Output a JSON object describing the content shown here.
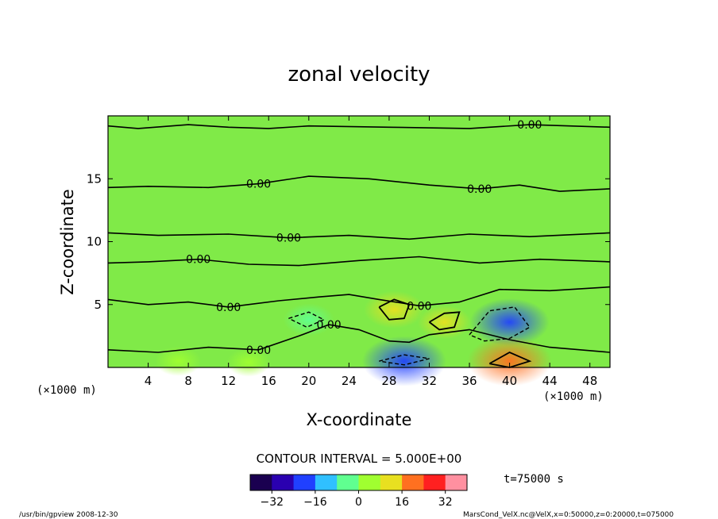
{
  "chart_data": {
    "type": "heatmap",
    "title": "zonal velocity",
    "xlabel": "X-coordinate",
    "ylabel": "Z-coordinate",
    "x_unit": "(×1000 m)",
    "xlim": [
      0,
      50
    ],
    "ylim": [
      0,
      20
    ],
    "x_ticks": [
      4,
      8,
      12,
      16,
      20,
      24,
      28,
      32,
      36,
      40,
      44,
      48
    ],
    "y_ticks": [
      5,
      10,
      15
    ],
    "contour_interval_text": "CONTOUR INTERVAL = 5.000E+00",
    "contour_labels": [
      "0.00",
      "0.00",
      "0.00",
      "0.00",
      "0.00",
      "0.00",
      "0.00",
      "0.00",
      "0.00",
      "0.00",
      "0.00",
      "0.00"
    ],
    "zero_contours": [
      [
        [
          0,
          19.2
        ],
        [
          3,
          19.0
        ],
        [
          8,
          19.3
        ],
        [
          12,
          19.1
        ],
        [
          16,
          19.0
        ],
        [
          20,
          19.2
        ],
        [
          28,
          19.1
        ],
        [
          36,
          19.0
        ],
        [
          42,
          19.3
        ],
        [
          50,
          19.1
        ]
      ],
      [
        [
          0,
          14.3
        ],
        [
          4,
          14.4
        ],
        [
          10,
          14.3
        ],
        [
          15,
          14.6
        ],
        [
          20,
          15.2
        ],
        [
          26,
          15.0
        ],
        [
          32,
          14.5
        ],
        [
          37,
          14.2
        ],
        [
          41,
          14.5
        ],
        [
          45,
          14.0
        ],
        [
          50,
          14.2
        ]
      ],
      [
        [
          0,
          10.7
        ],
        [
          5,
          10.5
        ],
        [
          12,
          10.6
        ],
        [
          18,
          10.3
        ],
        [
          24,
          10.5
        ],
        [
          30,
          10.2
        ],
        [
          36,
          10.6
        ],
        [
          42,
          10.4
        ],
        [
          50,
          10.7
        ]
      ],
      [
        [
          0,
          8.3
        ],
        [
          4,
          8.4
        ],
        [
          9,
          8.6
        ],
        [
          14,
          8.2
        ],
        [
          19,
          8.1
        ],
        [
          25,
          8.5
        ],
        [
          31,
          8.8
        ],
        [
          37,
          8.3
        ],
        [
          43,
          8.6
        ],
        [
          50,
          8.4
        ]
      ],
      [
        [
          0,
          5.4
        ],
        [
          4,
          5.0
        ],
        [
          8,
          5.2
        ],
        [
          12,
          4.8
        ],
        [
          17,
          5.3
        ],
        [
          21,
          5.6
        ],
        [
          24,
          5.8
        ],
        [
          27,
          5.4
        ],
        [
          31,
          4.9
        ],
        [
          35,
          5.2
        ],
        [
          39,
          6.2
        ],
        [
          44,
          6.1
        ],
        [
          50,
          6.4
        ]
      ],
      [
        [
          0,
          1.4
        ],
        [
          5,
          1.2
        ],
        [
          10,
          1.6
        ],
        [
          15,
          1.4
        ],
        [
          19,
          2.5
        ],
        [
          22,
          3.4
        ],
        [
          25,
          3.0
        ],
        [
          28,
          2.1
        ],
        [
          30,
          2.0
        ],
        [
          32,
          2.6
        ],
        [
          36,
          3.0
        ],
        [
          40,
          2.2
        ],
        [
          44,
          1.6
        ],
        [
          50,
          1.2
        ]
      ]
    ],
    "positive_contours": [
      [
        [
          27,
          4.8
        ],
        [
          28.5,
          5.4
        ],
        [
          30,
          5.0
        ],
        [
          29.5,
          3.9
        ],
        [
          28,
          3.8
        ],
        [
          27,
          4.8
        ]
      ],
      [
        [
          32,
          3.6
        ],
        [
          33.5,
          4.3
        ],
        [
          35,
          4.4
        ],
        [
          34.5,
          3.2
        ],
        [
          33,
          3.0
        ],
        [
          32,
          3.6
        ]
      ],
      [
        [
          38,
          0.3
        ],
        [
          40,
          1.2
        ],
        [
          42,
          0.5
        ],
        [
          40,
          0.0
        ],
        [
          38,
          0.3
        ]
      ]
    ],
    "negative_contours": [
      [
        [
          36,
          2.6
        ],
        [
          38,
          4.5
        ],
        [
          40.5,
          4.8
        ],
        [
          42,
          3.2
        ],
        [
          40,
          2.3
        ],
        [
          37.5,
          2.1
        ],
        [
          36,
          2.6
        ]
      ],
      [
        [
          27,
          0.5
        ],
        [
          29.5,
          1.0
        ],
        [
          32,
          0.7
        ],
        [
          29.5,
          0.2
        ],
        [
          27,
          0.5
        ]
      ],
      [
        [
          18,
          3.9
        ],
        [
          20,
          4.4
        ],
        [
          21.5,
          3.8
        ],
        [
          19.8,
          3.2
        ],
        [
          18,
          3.9
        ]
      ]
    ],
    "field_anomalies": [
      {
        "x": 40,
        "y": 3.6,
        "value": -20
      },
      {
        "x": 29.5,
        "y": 0.5,
        "value": -22
      },
      {
        "x": 20,
        "y": 3.8,
        "value": -8
      },
      {
        "x": 28.5,
        "y": 4.6,
        "value": 12
      },
      {
        "x": 33.5,
        "y": 3.6,
        "value": 9
      },
      {
        "x": 40,
        "y": 0.5,
        "value": 22
      },
      {
        "x": 7,
        "y": 0.5,
        "value": 6
      },
      {
        "x": 14,
        "y": 0.4,
        "value": 5
      }
    ],
    "colorbar": {
      "min": -40,
      "max": 40,
      "ticks": [
        -32,
        -16,
        0,
        16,
        32
      ],
      "colors": [
        "#1a0050",
        "#2a00b0",
        "#2040ff",
        "#30c0ff",
        "#60ff90",
        "#a0ff30",
        "#e8e020",
        "#ff7020",
        "#ff2020",
        "#ff90a0"
      ]
    }
  },
  "annotations": {
    "time": "t=75000 s",
    "footer_left": "/usr/bin/gpview   2008-12-30",
    "footer_right": "MarsCond_VelX.nc@VelX,x=0:50000,z=0:20000,t=075000"
  }
}
